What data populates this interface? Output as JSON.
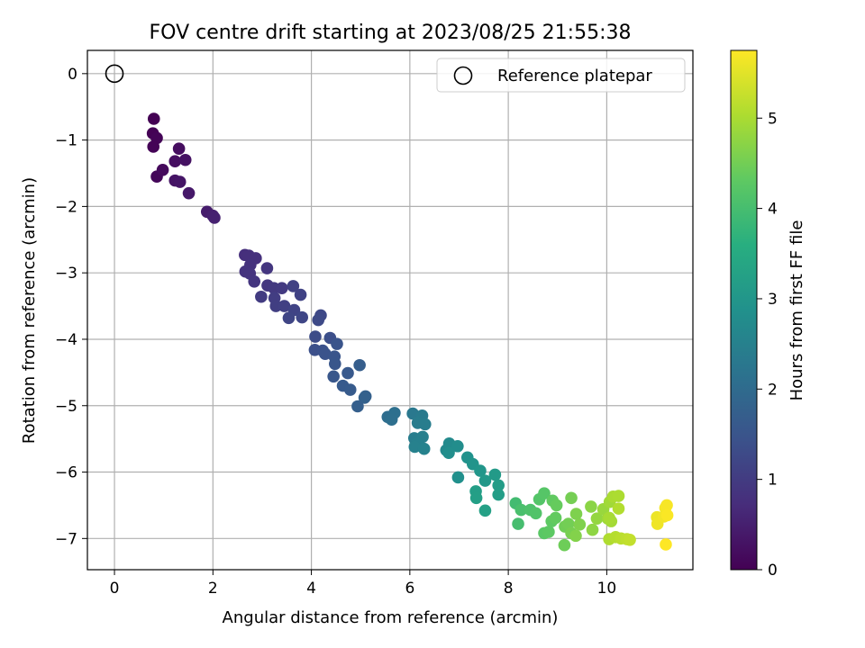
{
  "chart_data": {
    "type": "scatter",
    "title": "FOV centre drift starting at 2023/08/25 21:55:38",
    "xlabel": "Angular distance from reference (arcmin)",
    "ylabel": "Rotation from reference (arcmin)",
    "xlim": [
      -0.55,
      11.75
    ],
    "ylim": [
      -7.47,
      0.35
    ],
    "xticks": [
      0,
      2,
      4,
      6,
      8,
      10
    ],
    "yticks": [
      0,
      -1,
      -2,
      -3,
      -4,
      -5,
      -6,
      -7
    ],
    "grid": true,
    "legend": {
      "location": "upper right",
      "entries": [
        "Reference platepar"
      ]
    },
    "reference": {
      "name": "Reference platepar",
      "x": 0,
      "y": 0
    },
    "colorbar": {
      "label": "Hours from first FF file",
      "colormap": "viridis",
      "range": [
        0,
        5.75
      ],
      "ticks": [
        0,
        1,
        2,
        3,
        4,
        5
      ]
    },
    "series": [
      {
        "name": "",
        "points": [
          {
            "x": 0.8,
            "y": -0.68,
            "c": 0.0
          },
          {
            "x": 0.78,
            "y": -0.9,
            "c": 0.02
          },
          {
            "x": 0.86,
            "y": -0.97,
            "c": 0.05
          },
          {
            "x": 0.79,
            "y": -1.1,
            "c": 0.04
          },
          {
            "x": 0.86,
            "y": -1.55,
            "c": 0.1
          },
          {
            "x": 0.98,
            "y": -1.45,
            "c": 0.15
          },
          {
            "x": 1.31,
            "y": -1.13,
            "c": 0.2
          },
          {
            "x": 1.23,
            "y": -1.32,
            "c": 0.22
          },
          {
            "x": 1.44,
            "y": -1.3,
            "c": 0.28
          },
          {
            "x": 1.23,
            "y": -1.61,
            "c": 0.3
          },
          {
            "x": 1.33,
            "y": -1.63,
            "c": 0.33
          },
          {
            "x": 1.51,
            "y": -1.8,
            "c": 0.38
          },
          {
            "x": 1.88,
            "y": -2.08,
            "c": 0.45
          },
          {
            "x": 2.0,
            "y": -2.14,
            "c": 0.5
          },
          {
            "x": 2.03,
            "y": -2.17,
            "c": 0.52
          },
          {
            "x": 2.65,
            "y": -2.73,
            "c": 0.75
          },
          {
            "x": 2.73,
            "y": -2.74,
            "c": 0.78
          },
          {
            "x": 2.87,
            "y": -2.78,
            "c": 0.8
          },
          {
            "x": 2.76,
            "y": -2.88,
            "c": 0.82
          },
          {
            "x": 2.66,
            "y": -2.98,
            "c": 0.84
          },
          {
            "x": 2.75,
            "y": -3.01,
            "c": 0.86
          },
          {
            "x": 2.84,
            "y": -3.13,
            "c": 0.88
          },
          {
            "x": 3.1,
            "y": -2.93,
            "c": 0.9
          },
          {
            "x": 3.11,
            "y": -3.19,
            "c": 0.92
          },
          {
            "x": 3.24,
            "y": -3.23,
            "c": 0.95
          },
          {
            "x": 3.4,
            "y": -3.23,
            "c": 0.98
          },
          {
            "x": 2.98,
            "y": -3.36,
            "c": 1.0
          },
          {
            "x": 3.25,
            "y": -3.38,
            "c": 1.02
          },
          {
            "x": 3.28,
            "y": -3.5,
            "c": 1.05
          },
          {
            "x": 3.45,
            "y": -3.5,
            "c": 1.08
          },
          {
            "x": 3.63,
            "y": -3.2,
            "c": 1.1
          },
          {
            "x": 3.78,
            "y": -3.33,
            "c": 1.12
          },
          {
            "x": 3.65,
            "y": -3.56,
            "c": 1.15
          },
          {
            "x": 3.54,
            "y": -3.68,
            "c": 1.18
          },
          {
            "x": 3.81,
            "y": -3.67,
            "c": 1.2
          },
          {
            "x": 4.19,
            "y": -3.64,
            "c": 1.25
          },
          {
            "x": 4.14,
            "y": -3.71,
            "c": 1.28
          },
          {
            "x": 4.08,
            "y": -3.96,
            "c": 1.32
          },
          {
            "x": 4.38,
            "y": -3.98,
            "c": 1.38
          },
          {
            "x": 4.07,
            "y": -4.16,
            "c": 1.4
          },
          {
            "x": 4.23,
            "y": -4.17,
            "c": 1.42
          },
          {
            "x": 4.28,
            "y": -4.22,
            "c": 1.45
          },
          {
            "x": 4.52,
            "y": -4.07,
            "c": 1.48
          },
          {
            "x": 4.47,
            "y": -4.26,
            "c": 1.5
          },
          {
            "x": 4.48,
            "y": -4.37,
            "c": 1.52
          },
          {
            "x": 4.45,
            "y": -4.56,
            "c": 1.55
          },
          {
            "x": 4.74,
            "y": -4.51,
            "c": 1.6
          },
          {
            "x": 4.64,
            "y": -4.7,
            "c": 1.62
          },
          {
            "x": 4.79,
            "y": -4.76,
            "c": 1.65
          },
          {
            "x": 4.98,
            "y": -4.39,
            "c": 1.7
          },
          {
            "x": 5.1,
            "y": -4.86,
            "c": 1.75
          },
          {
            "x": 5.08,
            "y": -4.88,
            "c": 1.78
          },
          {
            "x": 4.94,
            "y": -5.01,
            "c": 1.72
          },
          {
            "x": 5.55,
            "y": -5.17,
            "c": 2.05
          },
          {
            "x": 5.69,
            "y": -5.11,
            "c": 2.1
          },
          {
            "x": 5.63,
            "y": -5.21,
            "c": 2.08
          },
          {
            "x": 6.06,
            "y": -5.12,
            "c": 2.3
          },
          {
            "x": 6.25,
            "y": -5.15,
            "c": 2.35
          },
          {
            "x": 6.16,
            "y": -5.26,
            "c": 2.38
          },
          {
            "x": 6.31,
            "y": -5.28,
            "c": 2.4
          },
          {
            "x": 6.09,
            "y": -5.49,
            "c": 2.42
          },
          {
            "x": 6.26,
            "y": -5.47,
            "c": 2.45
          },
          {
            "x": 6.15,
            "y": -5.57,
            "c": 2.48
          },
          {
            "x": 6.1,
            "y": -5.62,
            "c": 2.5
          },
          {
            "x": 6.29,
            "y": -5.65,
            "c": 2.52
          },
          {
            "x": 6.74,
            "y": -5.67,
            "c": 2.7
          },
          {
            "x": 6.8,
            "y": -5.57,
            "c": 2.72
          },
          {
            "x": 6.97,
            "y": -5.61,
            "c": 2.78
          },
          {
            "x": 6.79,
            "y": -5.71,
            "c": 2.8
          },
          {
            "x": 6.98,
            "y": -6.08,
            "c": 2.85
          },
          {
            "x": 7.17,
            "y": -5.78,
            "c": 2.9
          },
          {
            "x": 7.28,
            "y": -5.88,
            "c": 2.95
          },
          {
            "x": 7.43,
            "y": -5.98,
            "c": 3.0
          },
          {
            "x": 7.53,
            "y": -6.13,
            "c": 3.05
          },
          {
            "x": 7.73,
            "y": -6.04,
            "c": 3.1
          },
          {
            "x": 7.8,
            "y": -6.2,
            "c": 3.15
          },
          {
            "x": 7.8,
            "y": -6.34,
            "c": 3.18
          },
          {
            "x": 7.34,
            "y": -6.29,
            "c": 3.2
          },
          {
            "x": 7.35,
            "y": -6.39,
            "c": 3.22
          },
          {
            "x": 7.53,
            "y": -6.58,
            "c": 3.25
          },
          {
            "x": 8.15,
            "y": -6.47,
            "c": 3.95
          },
          {
            "x": 8.2,
            "y": -6.78,
            "c": 4.0
          },
          {
            "x": 8.26,
            "y": -6.57,
            "c": 4.05
          },
          {
            "x": 8.45,
            "y": -6.57,
            "c": 4.1
          },
          {
            "x": 8.56,
            "y": -6.62,
            "c": 4.15
          },
          {
            "x": 8.63,
            "y": -6.41,
            "c": 4.18
          },
          {
            "x": 8.73,
            "y": -6.32,
            "c": 4.2
          },
          {
            "x": 8.73,
            "y": -6.92,
            "c": 4.25
          },
          {
            "x": 8.82,
            "y": -6.9,
            "c": 4.28
          },
          {
            "x": 8.88,
            "y": -6.74,
            "c": 4.3
          },
          {
            "x": 8.96,
            "y": -6.69,
            "c": 4.35
          },
          {
            "x": 8.9,
            "y": -6.43,
            "c": 4.33
          },
          {
            "x": 8.98,
            "y": -6.5,
            "c": 4.38
          },
          {
            "x": 9.14,
            "y": -7.1,
            "c": 4.45
          },
          {
            "x": 9.15,
            "y": -6.82,
            "c": 4.48
          },
          {
            "x": 9.22,
            "y": -6.78,
            "c": 4.5
          },
          {
            "x": 9.28,
            "y": -6.39,
            "c": 4.52
          },
          {
            "x": 9.28,
            "y": -6.92,
            "c": 4.55
          },
          {
            "x": 9.38,
            "y": -6.63,
            "c": 4.6
          },
          {
            "x": 9.45,
            "y": -6.79,
            "c": 4.62
          },
          {
            "x": 9.37,
            "y": -6.96,
            "c": 4.65
          },
          {
            "x": 9.68,
            "y": -6.52,
            "c": 4.72
          },
          {
            "x": 9.71,
            "y": -6.87,
            "c": 4.75
          },
          {
            "x": 9.8,
            "y": -6.7,
            "c": 4.8
          },
          {
            "x": 9.93,
            "y": -6.56,
            "c": 4.85
          },
          {
            "x": 10.02,
            "y": -6.7,
            "c": 4.88
          },
          {
            "x": 10.06,
            "y": -6.45,
            "c": 4.92
          },
          {
            "x": 10.09,
            "y": -6.74,
            "c": 4.95
          },
          {
            "x": 10.05,
            "y": -6.69,
            "c": 4.98
          },
          {
            "x": 10.13,
            "y": -6.37,
            "c": 5.0
          },
          {
            "x": 10.24,
            "y": -6.36,
            "c": 5.02
          },
          {
            "x": 10.05,
            "y": -7.01,
            "c": 5.05
          },
          {
            "x": 10.24,
            "y": -6.55,
            "c": 5.08
          },
          {
            "x": 10.18,
            "y": -6.98,
            "c": 5.1
          },
          {
            "x": 10.29,
            "y": -7.0,
            "c": 5.15
          },
          {
            "x": 10.41,
            "y": -7.01,
            "c": 5.18
          },
          {
            "x": 10.47,
            "y": -7.02,
            "c": 5.22
          },
          {
            "x": 11.02,
            "y": -6.68,
            "c": 5.6
          },
          {
            "x": 11.03,
            "y": -6.78,
            "c": 5.62
          },
          {
            "x": 11.16,
            "y": -6.67,
            "c": 5.65
          },
          {
            "x": 11.19,
            "y": -6.54,
            "c": 5.68
          },
          {
            "x": 11.22,
            "y": -6.5,
            "c": 5.7
          },
          {
            "x": 11.23,
            "y": -6.65,
            "c": 5.72
          },
          {
            "x": 11.2,
            "y": -7.09,
            "c": 5.75
          }
        ]
      }
    ]
  }
}
